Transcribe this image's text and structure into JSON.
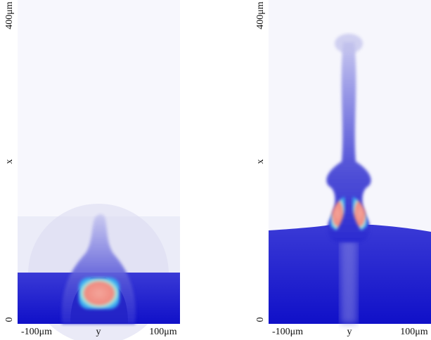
{
  "panels": [
    {
      "x_axis_label": "y",
      "y_axis_label": "x",
      "x_tick_labels": [
        "-100μm",
        "100μm"
      ],
      "y_tick_labels": [
        "0",
        "400μm"
      ]
    },
    {
      "x_axis_label": "y",
      "y_axis_label": "x",
      "x_tick_labels": [
        "-100μm",
        "100μm"
      ],
      "y_tick_labels": [
        "0",
        "400μm"
      ]
    }
  ]
}
